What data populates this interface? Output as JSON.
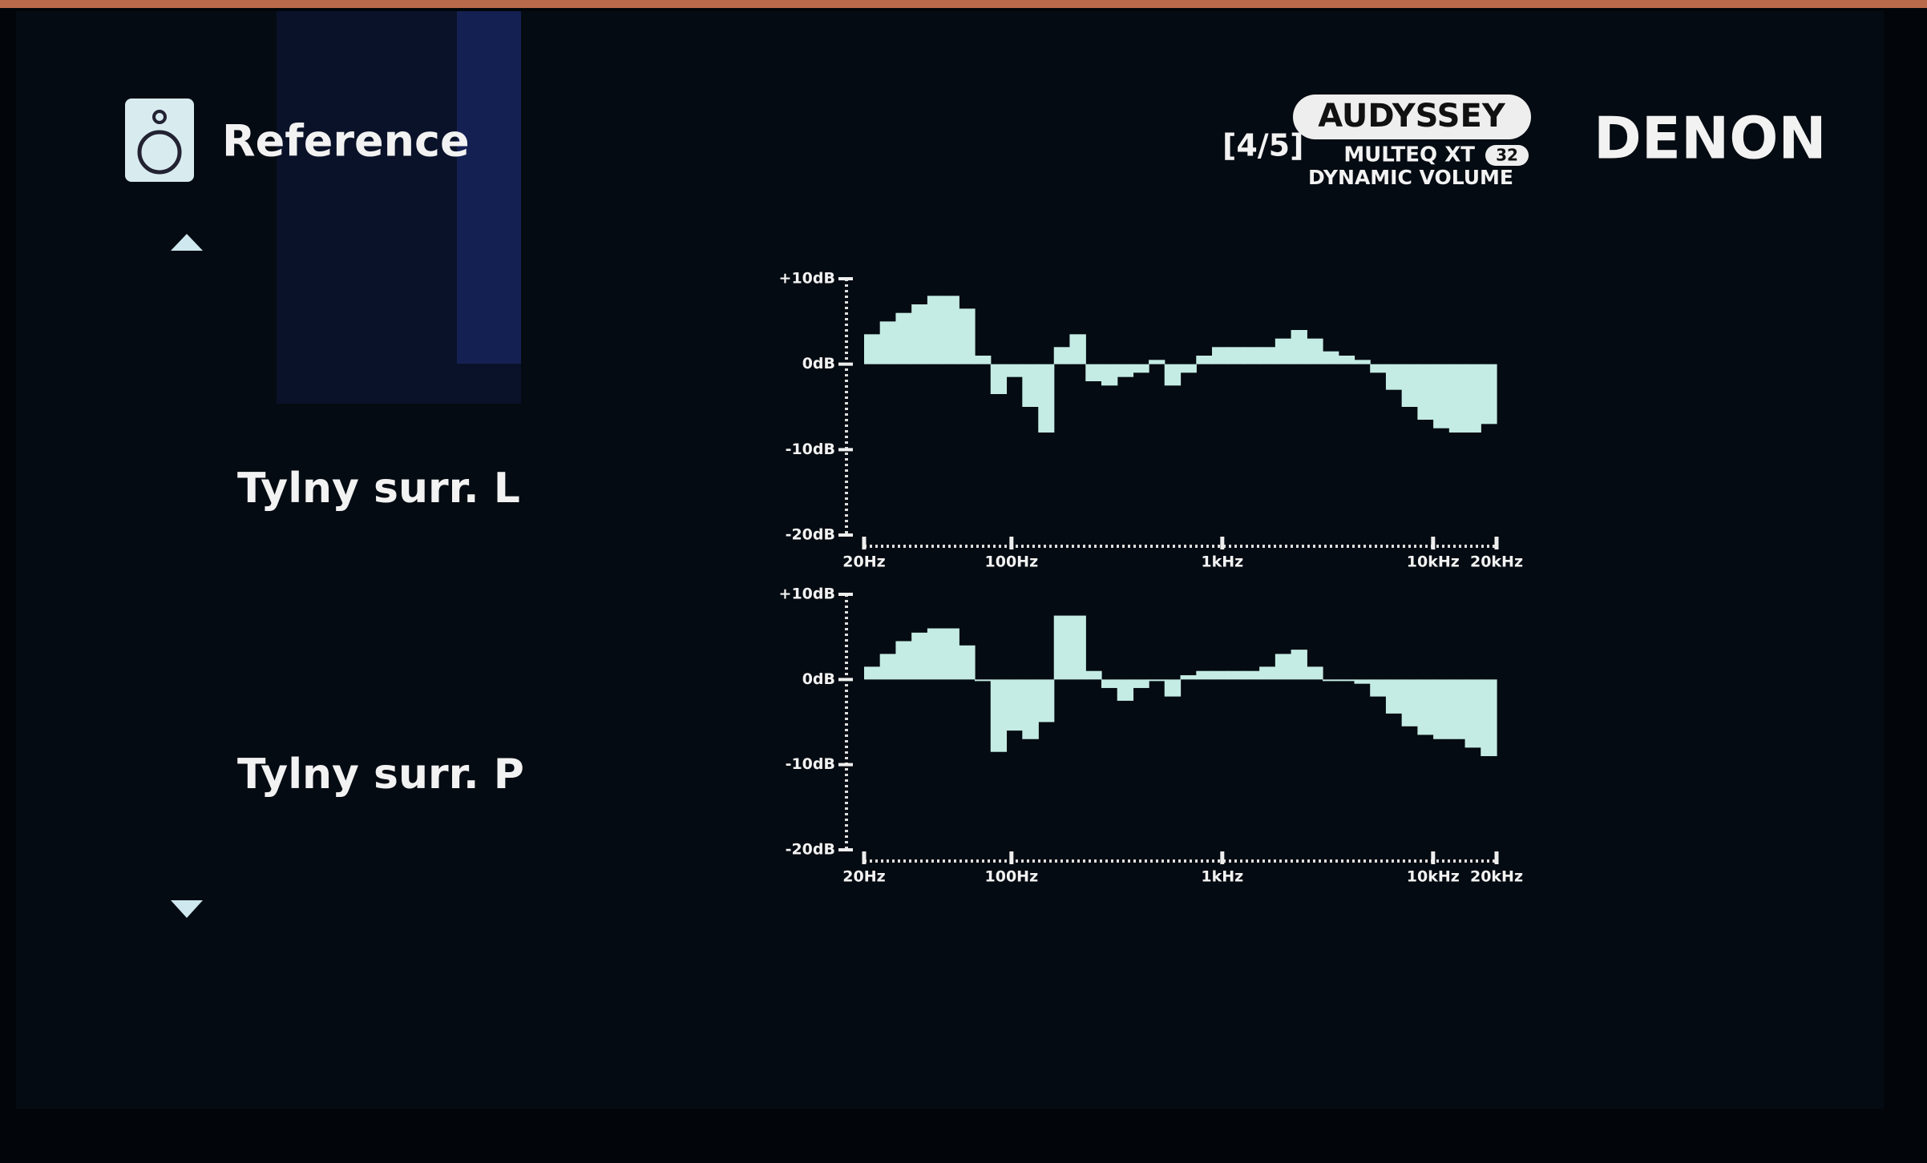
{
  "header": {
    "title": "Reference",
    "page": "[4/5]",
    "logo": {
      "brand": "AUDYSSEY",
      "line1": "MULTEQ XT",
      "badge": "32",
      "line2": "DYNAMIC VOLUME"
    },
    "maker": "DENON"
  },
  "chart_data": [
    {
      "type": "bar",
      "title": "Tylny surr. L",
      "color": "#c4ece4",
      "log_x": true,
      "x": [
        21.8,
        25.9,
        30.8,
        36.6,
        43.5,
        51.7,
        61.4,
        73.0,
        86.8,
        103,
        123,
        146,
        173,
        206,
        245,
        291,
        346,
        411,
        488,
        580,
        690,
        820,
        974,
        1157,
        1376,
        1635,
        1943,
        2310,
        2745,
        3262,
        3878,
        4609,
        5477,
        6510,
        7737,
        9196,
        10929,
        12989,
        15437,
        18347
      ],
      "values": [
        3.5,
        5,
        6,
        7,
        8,
        8,
        6.5,
        1,
        -3.5,
        -1.5,
        -5,
        -8,
        2,
        3.5,
        -2,
        -2.5,
        -1.5,
        -1,
        0.5,
        -2.5,
        -1,
        1,
        2,
        2,
        2,
        2,
        3,
        4,
        3,
        1.5,
        1,
        0.5,
        -1,
        -3,
        -5,
        -6.5,
        -7.5,
        -8,
        -8,
        -7
      ],
      "xlim": [
        20,
        20000
      ],
      "xticks": [
        {
          "value": 20,
          "label": "20Hz"
        },
        {
          "value": 100,
          "label": "100Hz"
        },
        {
          "value": 1000,
          "label": "1kHz"
        },
        {
          "value": 10000,
          "label": "10kHz"
        },
        {
          "value": 20000,
          "label": "20kHz"
        }
      ],
      "ylim": [
        -20,
        10
      ],
      "yticks": [
        {
          "value": 10,
          "label": "+10dB"
        },
        {
          "value": 0,
          "label": "0dB"
        },
        {
          "value": -10,
          "label": "-10dB"
        },
        {
          "value": -20,
          "label": "-20dB"
        }
      ]
    },
    {
      "type": "bar",
      "title": "Tylny surr. P",
      "color": "#c4ece4",
      "log_x": true,
      "x": [
        21.8,
        25.9,
        30.8,
        36.6,
        43.5,
        51.7,
        61.4,
        73.0,
        86.8,
        103,
        123,
        146,
        173,
        206,
        245,
        291,
        346,
        411,
        488,
        580,
        690,
        820,
        974,
        1157,
        1376,
        1635,
        1943,
        2310,
        2745,
        3262,
        3878,
        4609,
        5477,
        6510,
        7737,
        9196,
        10929,
        12989,
        15437,
        18347
      ],
      "values": [
        1.5,
        3,
        4.5,
        5.5,
        6,
        6,
        4,
        0,
        -8.5,
        -6,
        -7,
        -5,
        7.5,
        7.5,
        1,
        -1,
        -2.5,
        -1,
        0,
        -2,
        0.5,
        1,
        1,
        1,
        1,
        1.5,
        3,
        3.5,
        1.5,
        0,
        0,
        -0.5,
        -2,
        -4,
        -5.5,
        -6.5,
        -7,
        -7,
        -8,
        -9
      ],
      "xlim": [
        20,
        20000
      ],
      "xticks": [
        {
          "value": 20,
          "label": "20Hz"
        },
        {
          "value": 100,
          "label": "100Hz"
        },
        {
          "value": 1000,
          "label": "1kHz"
        },
        {
          "value": 10000,
          "label": "10kHz"
        },
        {
          "value": 20000,
          "label": "20kHz"
        }
      ],
      "ylim": [
        -20,
        10
      ],
      "yticks": [
        {
          "value": 10,
          "label": "+10dB"
        },
        {
          "value": 0,
          "label": "0dB"
        },
        {
          "value": -10,
          "label": "-10dB"
        },
        {
          "value": -20,
          "label": "-20dB"
        }
      ]
    }
  ]
}
